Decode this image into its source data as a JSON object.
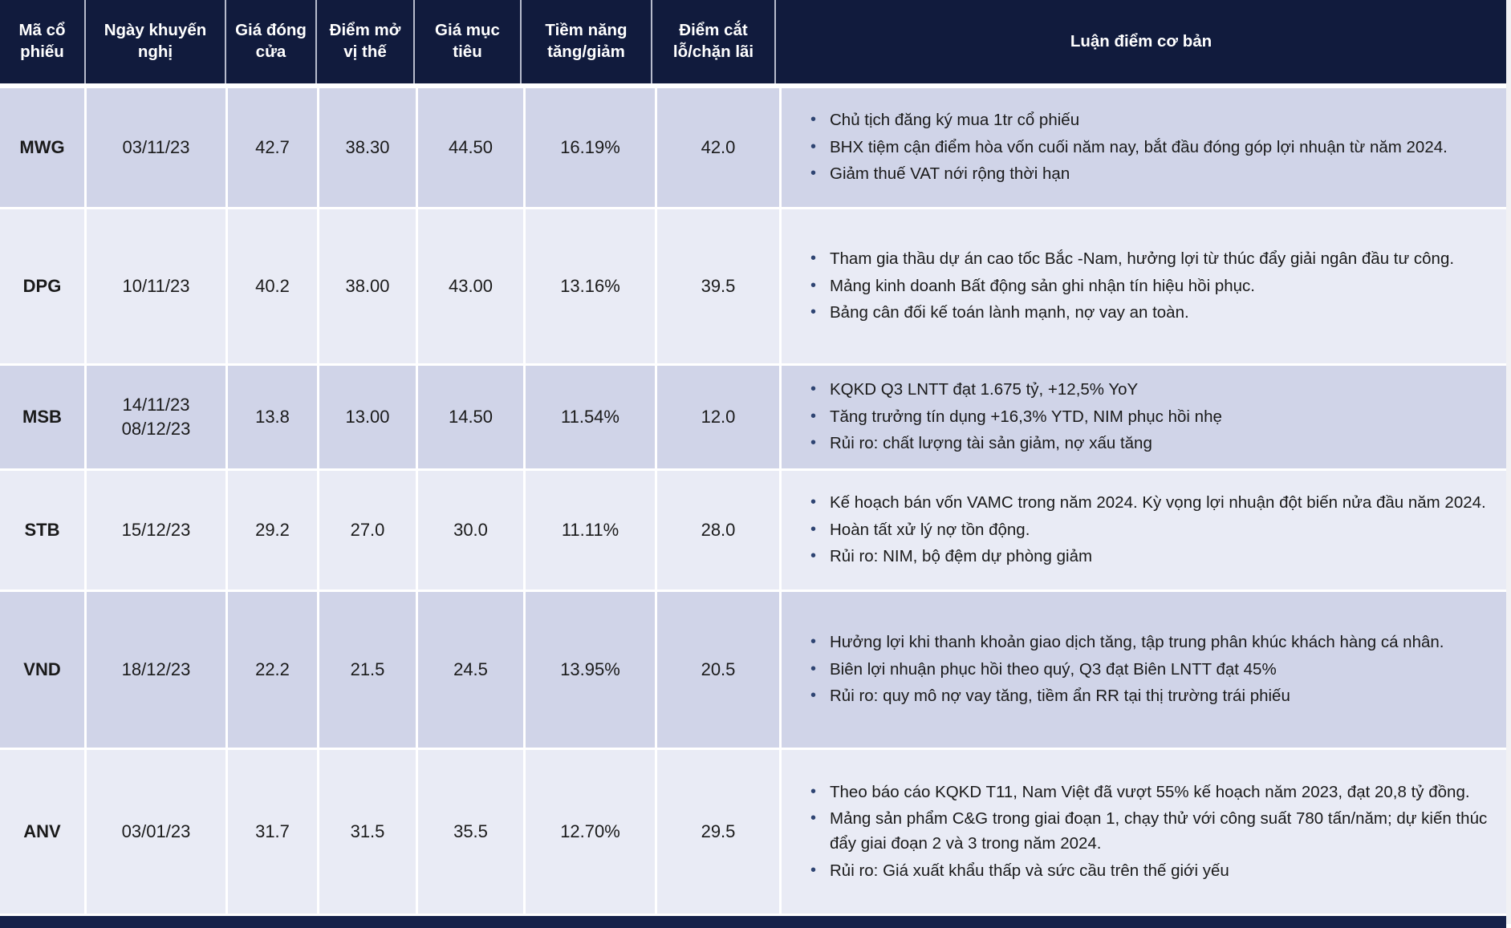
{
  "colors": {
    "header_bg": "#111B3D",
    "row_dark": "#D0D4E8",
    "row_light": "#E9EBF5",
    "grid_line": "#FFFFFF",
    "bullet": "#2E4472",
    "text": "#1A1A1A",
    "header_text": "#FFFFFF",
    "footer_bar": "#16224A"
  },
  "table": {
    "columns": [
      {
        "label": "Mã cổ phiếu"
      },
      {
        "label": "Ngày khuyến nghị"
      },
      {
        "label": "Giá đóng cửa"
      },
      {
        "label": "Điểm mở vị thế"
      },
      {
        "label": "Giá mục tiêu"
      },
      {
        "label": "Tiềm năng tăng/giảm"
      },
      {
        "label": "Điểm cắt lỗ/chặn lãi"
      },
      {
        "label": "Luận điểm cơ bản"
      }
    ],
    "rows": [
      {
        "code": "MWG",
        "date": "03/11/23",
        "close": "42.7",
        "open_point": "38.30",
        "target": "44.50",
        "potential": "16.19%",
        "stop": "42.0",
        "thesis": [
          "Chủ tịch đăng ký mua 1tr cổ phiếu",
          "BHX tiệm cận điểm hòa vốn cuối năm nay, bắt đầu đóng góp lợi nhuận từ năm 2024.",
          "Giảm thuế VAT nới rộng thời hạn"
        ]
      },
      {
        "code": "DPG",
        "date": "10/11/23",
        "close": "40.2",
        "open_point": "38.00",
        "target": "43.00",
        "potential": "13.16%",
        "stop": "39.5",
        "thesis": [
          "Tham gia thầu dự án cao tốc Bắc -Nam, hưởng lợi từ thúc đẩy giải ngân đầu tư công.",
          "Mảng kinh doanh Bất động sản ghi nhận tín hiệu hồi phục.",
          "Bảng cân đối kế toán lành mạnh, nợ vay an toàn."
        ]
      },
      {
        "code": "MSB",
        "date": "14/11/23\n08/12/23",
        "close": "13.8",
        "open_point": "13.00",
        "target": "14.50",
        "potential": "11.54%",
        "stop": "12.0",
        "thesis": [
          "KQKD Q3 LNTT đạt 1.675 tỷ, +12,5% YoY",
          "Tăng trưởng tín dụng +16,3% YTD, NIM phục hồi nhẹ",
          "Rủi ro: chất lượng tài sản giảm, nợ xấu tăng"
        ]
      },
      {
        "code": "STB",
        "date": "15/12/23",
        "close": "29.2",
        "open_point": "27.0",
        "target": "30.0",
        "potential": "11.11%",
        "stop": "28.0",
        "thesis": [
          "Kế hoạch bán vốn VAMC trong năm 2024. Kỳ vọng lợi nhuận đột biến nửa đầu năm 2024.",
          "Hoàn tất xử lý nợ tồn động.",
          "Rủi ro: NIM, bộ đệm dự phòng giảm"
        ]
      },
      {
        "code": "VND",
        "date": "18/12/23",
        "close": "22.2",
        "open_point": "21.5",
        "target": "24.5",
        "potential": "13.95%",
        "stop": "20.5",
        "thesis": [
          "Hưởng lợi khi thanh khoản giao dịch tăng, tập trung phân khúc khách hàng cá nhân.",
          "Biên lợi nhuận phục hồi theo quý, Q3 đạt Biên LNTT đạt 45%",
          "Rủi ro: quy mô nợ vay tăng, tiềm ẩn RR tại thị trường trái phiếu"
        ]
      },
      {
        "code": "ANV",
        "date": "03/01/23",
        "close": "31.7",
        "open_point": "31.5",
        "target": "35.5",
        "potential": "12.70%",
        "stop": "29.5",
        "thesis": [
          "Theo báo cáo KQKD T11, Nam Việt đã vượt 55% kế hoạch năm 2023, đạt 20,8 tỷ đồng.",
          "Mảng sản phẩm C&G trong giai đoạn 1, chạy thử với công suất 780 tấn/năm; dự kiến thúc đẩy giai đoạn 2 và 3 trong năm 2024.",
          "Rủi ro: Giá xuất khẩu thấp và sức cầu trên thế giới yếu"
        ]
      }
    ]
  }
}
